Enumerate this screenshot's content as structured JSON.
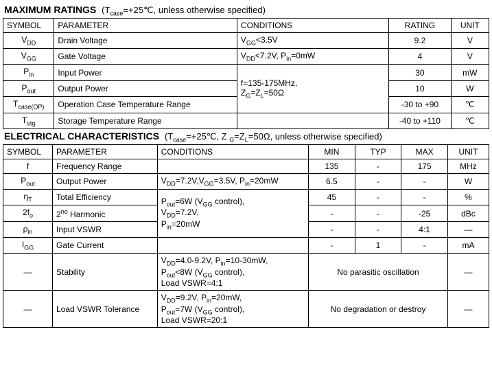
{
  "max_ratings": {
    "title": "MAXIMUM RATINGS",
    "condition_note": "(T<sub>case</sub>=+25℃, unless otherwise specified)",
    "headers": {
      "symbol": "SYMBOL",
      "parameter": "PARAMETER",
      "conditions": "CONDITIONS",
      "rating": "RATING",
      "unit": "UNIT"
    },
    "rows": [
      {
        "symbol": "V<sub>DD</sub>",
        "parameter": "Drain Voltage",
        "conditions": "V<sub>GG</sub><3.5V",
        "rating": "9.2",
        "unit": "V"
      },
      {
        "symbol": "V<sub>GG</sub>",
        "parameter": "Gate Voltage",
        "conditions": "V<sub>DD</sub><7.2V, P<sub>in</sub>=0mW",
        "rating": "4",
        "unit": "V"
      },
      {
        "symbol": "P<sub>in</sub>",
        "parameter": "Input Power",
        "rating": "30",
        "unit": "mW"
      },
      {
        "symbol": "P<sub>out</sub>",
        "parameter": "Output Power",
        "rating": "10",
        "unit": "W"
      },
      {
        "symbol": "T<sub>case(OP)</sub>",
        "parameter": "Operation Case Temperature Range",
        "rating": "-30 to +90",
        "unit": "℃"
      },
      {
        "symbol": "T<sub>stg</sub>",
        "parameter": "Storage Temperature Range",
        "conditions": "",
        "rating": "-40 to +110",
        "unit": "℃"
      }
    ],
    "merged_condition_rows_2_4": "f=135-175MHz,<br>Z<sub>G</sub>=Z<sub>L</sub>=50Ω"
  },
  "electrical": {
    "title": "ELECTRICAL CHARACTERISTICS",
    "condition_note": "(T<sub>case</sub>=+25℃, Z <sub>G</sub>=Z<sub>L</sub>=50Ω, unless otherwise specified)",
    "headers": {
      "symbol": "SYMBOL",
      "parameter": "PARAMETER",
      "conditions": "CONDITIONS",
      "min": "MIN",
      "typ": "TYP",
      "max": "MAX",
      "unit": "UNIT"
    },
    "rows": [
      {
        "symbol": "f",
        "parameter": "Frequency Range",
        "conditions": "",
        "min": "135",
        "typ": "-",
        "max": "175",
        "unit": "MHz"
      },
      {
        "symbol": "P<sub>out</sub>",
        "parameter": "Output Power",
        "conditions": "V<sub>DD</sub>=7.2V,V<sub>GG</sub>=3.5V, P<sub>in</sub>=20mW",
        "min": "6.5",
        "typ": "-",
        "max": "-",
        "unit": "W"
      },
      {
        "symbol": "η<sub>T</sub>",
        "parameter": "Total Efficiency",
        "min": "45",
        "typ": "-",
        "max": "-",
        "unit": "%"
      },
      {
        "symbol": "2f<sub>o</sub>",
        "parameter": "2<sup>no</sup> Harmonic",
        "min": "-",
        "typ": "-",
        "max": "-25",
        "unit": "dBc"
      },
      {
        "symbol": "ρ<sub>in</sub>",
        "parameter": "Input VSWR",
        "min": "-",
        "typ": "-",
        "max": "4:1",
        "unit": "—"
      },
      {
        "symbol": "I<sub>GG</sub>",
        "parameter": "Gate Current",
        "conditions": "",
        "min": "-",
        "typ": "1",
        "max": "-",
        "unit": "mA"
      },
      {
        "symbol": "—",
        "parameter": "Stability",
        "conditions": "V<sub>DD</sub>=4.0-9.2V,  P<sub>in</sub>=10-30mW,<br>P<sub>out</sub><8W (V<sub>GG</sub> control),<br>Load VSWR=4:1",
        "merged": "No parasitic oscillation",
        "unit": "—"
      },
      {
        "symbol": "—",
        "parameter": "Load VSWR Tolerance",
        "conditions": "V<sub>DD</sub>=9.2V, P<sub>in</sub>=20mW,<br>P<sub>out</sub>=7W (V<sub>GG</sub> control),<br>Load VSWR=20:1",
        "merged": "No degradation or destroy",
        "unit": "—"
      }
    ],
    "merged_condition_rows_2_4": "P<sub>out</sub>=6W (V<sub>GG</sub> control),<br>V<sub>DD</sub>=7.2V,<br>P<sub>in</sub>=20mW"
  }
}
